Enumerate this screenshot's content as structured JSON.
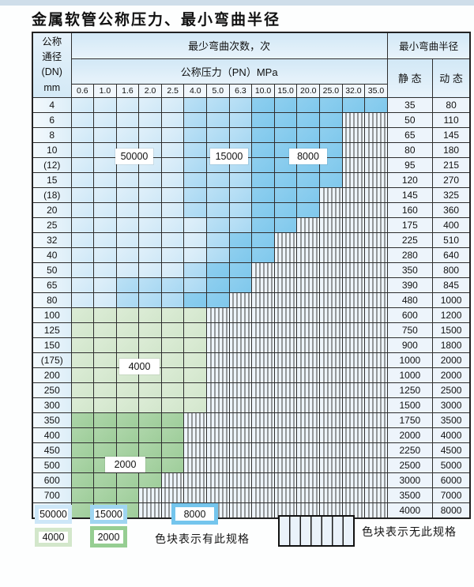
{
  "page": {
    "title": "金属软管公称压力、最小弯曲半径"
  },
  "table": {
    "corner": "公称\n通径\n(DN)\nmm",
    "bend_cycles_header": "最少弯曲次数，次",
    "pressure_header": "公称压力（PN）MPa",
    "pressure_columns": [
      "0.6",
      "1.0",
      "1.6",
      "2.0",
      "2.5",
      "4.0",
      "5.0",
      "6.3",
      "10.0",
      "15.0",
      "20.0",
      "25.0",
      "32.0",
      "35.0"
    ],
    "radius_header": "最小弯曲半径",
    "static_header": "静 态",
    "dynamic_header": "动 态",
    "rows": [
      {
        "dn": "4",
        "st": "35",
        "dy": "80",
        "type": "blue",
        "l": 5,
        "m": 8,
        "e": 14
      },
      {
        "dn": "6",
        "st": "50",
        "dy": "110",
        "type": "blue",
        "l": 5,
        "m": 8,
        "e": 12
      },
      {
        "dn": "8",
        "st": "65",
        "dy": "145",
        "type": "blue",
        "l": 5,
        "m": 8,
        "e": 12
      },
      {
        "dn": "10",
        "st": "80",
        "dy": "180",
        "type": "blue",
        "l": 5,
        "m": 8,
        "e": 12
      },
      {
        "dn": "(12)",
        "st": "95",
        "dy": "215",
        "type": "blue",
        "l": 5,
        "m": 8,
        "e": 12
      },
      {
        "dn": "15",
        "st": "120",
        "dy": "270",
        "type": "blue",
        "l": 5,
        "m": 8,
        "e": 12
      },
      {
        "dn": "(18)",
        "st": "145",
        "dy": "325",
        "type": "blue",
        "l": 5,
        "m": 8,
        "e": 11
      },
      {
        "dn": "20",
        "st": "160",
        "dy": "360",
        "type": "blue",
        "l": 5,
        "m": 8,
        "e": 11
      },
      {
        "dn": "25",
        "st": "175",
        "dy": "400",
        "type": "blue",
        "l": 6,
        "m": 8,
        "e": 10
      },
      {
        "dn": "32",
        "st": "225",
        "dy": "510",
        "type": "blue",
        "l": 6,
        "m": 7,
        "e": 9
      },
      {
        "dn": "40",
        "st": "280",
        "dy": "640",
        "type": "blue",
        "l": 6,
        "m": 7,
        "e": 9
      },
      {
        "dn": "50",
        "st": "350",
        "dy": "800",
        "type": "blue",
        "l": 5,
        "m": 6,
        "e": 8
      },
      {
        "dn": "65",
        "st": "390",
        "dy": "845",
        "type": "blue",
        "l": 2,
        "m": 6,
        "e": 8
      },
      {
        "dn": "80",
        "st": "480",
        "dy": "1000",
        "type": "blue",
        "l": 2,
        "m": 5,
        "e": 7
      },
      {
        "dn": "100",
        "st": "600",
        "dy": "1200",
        "type": "green-light",
        "e": 6
      },
      {
        "dn": "125",
        "st": "750",
        "dy": "1500",
        "type": "green-light",
        "e": 6
      },
      {
        "dn": "150",
        "st": "900",
        "dy": "1800",
        "type": "green-light",
        "e": 6
      },
      {
        "dn": "(175)",
        "st": "1000",
        "dy": "2000",
        "type": "green-light",
        "e": 6
      },
      {
        "dn": "200",
        "st": "1000",
        "dy": "2000",
        "type": "green-light",
        "e": 6
      },
      {
        "dn": "250",
        "st": "1250",
        "dy": "2500",
        "type": "green-light",
        "e": 6
      },
      {
        "dn": "300",
        "st": "1500",
        "dy": "3000",
        "type": "green-light",
        "e": 6
      },
      {
        "dn": "350",
        "st": "1750",
        "dy": "3500",
        "type": "green-dark",
        "e": 5
      },
      {
        "dn": "400",
        "st": "2000",
        "dy": "4000",
        "type": "green-dark",
        "e": 5
      },
      {
        "dn": "450",
        "st": "2250",
        "dy": "4500",
        "type": "green-dark",
        "e": 5
      },
      {
        "dn": "500",
        "st": "2500",
        "dy": "5000",
        "type": "green-dark",
        "e": 5
      },
      {
        "dn": "600",
        "st": "3000",
        "dy": "6000",
        "type": "green-dark",
        "e": 4
      },
      {
        "dn": "700",
        "st": "3500",
        "dy": "7000",
        "type": "green-dark",
        "e": 3
      },
      {
        "dn": "800",
        "st": "4000",
        "dy": "8000",
        "type": "green-dark",
        "e": 3
      }
    ]
  },
  "zone_labels": [
    {
      "text": "50000"
    },
    {
      "text": "15000"
    },
    {
      "text": "8000"
    },
    {
      "text": "4000"
    },
    {
      "text": "2000"
    }
  ],
  "legend": {
    "chips": [
      {
        "label": "50000",
        "color": "#cde7f8"
      },
      {
        "label": "15000",
        "color": "#9fd5f1"
      },
      {
        "label": "8000",
        "color": "#74c5ed"
      },
      {
        "label": "4000",
        "color": "#d3e7cb"
      },
      {
        "label": "2000",
        "color": "#96ce92"
      }
    ],
    "has_spec_text": "色块表示有此规格",
    "no_spec_text": "色块表示无此规格"
  },
  "colors": {
    "blue_50000": "#d9ecf9",
    "blue_15000": "#b0dcf4",
    "blue_8000": "#87cbed",
    "green_4000": "#d7e9d1",
    "green_2000": "#a6d1a2",
    "top_strip": "#cfdeea"
  }
}
